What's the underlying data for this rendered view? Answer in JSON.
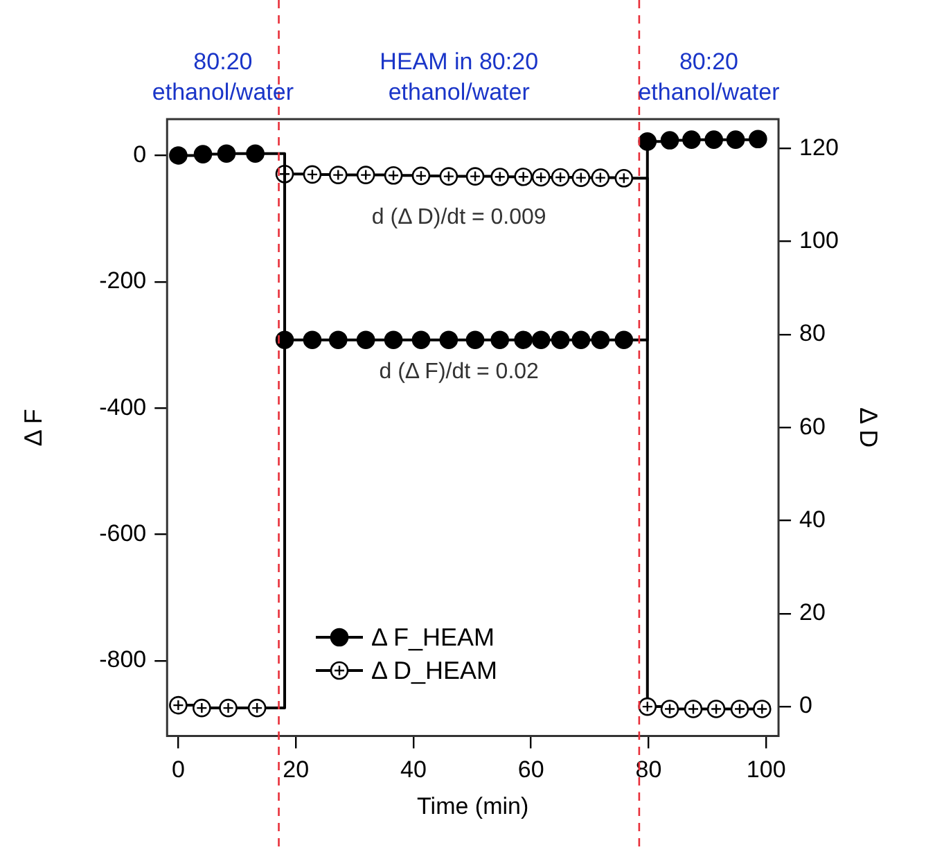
{
  "chart_data": {
    "type": "step",
    "xlabel": "Time (min)",
    "ylabel": "Δ F",
    "y2label": "Δ D",
    "xlim": [
      -1.9,
      102.1
    ],
    "xticks": [
      0,
      20,
      40,
      60,
      80,
      100
    ],
    "ylim": [
      -919,
      57.5
    ],
    "yticks": [
      0,
      -200,
      -400,
      -600,
      -800
    ],
    "y2lim": [
      -6.3,
      126.3
    ],
    "y2ticks": [
      0,
      20,
      40,
      60,
      80,
      100,
      120
    ],
    "grid": false,
    "legend": "bottom",
    "marker": "circle",
    "series": [
      {
        "name": "Δ F_HEAM",
        "color": "#000000",
        "x": [
          0,
          4.2,
          8.2,
          13.1,
          18.1,
          22.8,
          27.2,
          31.9,
          36.6,
          41.3,
          46.0,
          50.5,
          54.7,
          58.7,
          61.7,
          65.0,
          68.5,
          71.8,
          75.8,
          79.8,
          83.6,
          87.3,
          91.1,
          94.8,
          98.6
        ],
        "values": [
          0,
          2,
          3,
          3,
          -292,
          -292,
          -292,
          -292,
          -292,
          -292,
          -292,
          -292,
          -292,
          -292,
          -292,
          -292,
          -292,
          -292,
          -292,
          22,
          24,
          25,
          25,
          25,
          26
        ]
      },
      {
        "name": "Δ D_HEAM",
        "color": "#000000",
        "axis": "y2",
        "x": [
          0,
          4.0,
          8.5,
          13.4,
          18.1,
          22.8,
          27.2,
          31.9,
          36.6,
          41.3,
          46.0,
          50.5,
          54.7,
          58.7,
          61.7,
          65.0,
          68.5,
          71.8,
          75.8,
          79.8,
          83.6,
          87.6,
          91.5,
          95.5,
          99.3
        ],
        "values": [
          0.3,
          -0.3,
          -0.3,
          -0.3,
          114.5,
          114.4,
          114.3,
          114.3,
          114.2,
          114.1,
          114.0,
          114.0,
          113.9,
          113.9,
          113.8,
          113.8,
          113.7,
          113.7,
          113.6,
          0,
          -0.5,
          -0.5,
          -0.5,
          -0.5,
          -0.5
        ]
      }
    ],
    "ref_lines": [
      {
        "axis": "x",
        "value": 17.1,
        "label": null,
        "color": "#e8303a",
        "line_style": "dashed"
      },
      {
        "axis": "x",
        "value": 78.4,
        "label": null,
        "color": "#e8303a",
        "line_style": "dashed"
      }
    ],
    "annotations": [
      "80:20\nethanol/water",
      "HEAM in 80:20\nethanol/water",
      "80:20\nethanol/water",
      "d (Δ D)/dt = 0.009",
      "d (Δ F)/dt = 0.02"
    ]
  }
}
